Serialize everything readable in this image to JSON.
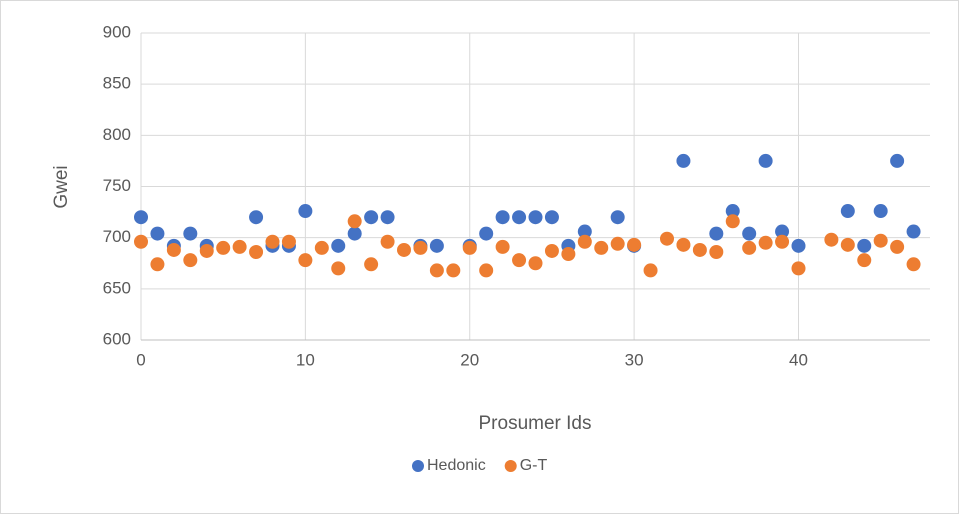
{
  "chart_data": {
    "type": "scatter",
    "xlabel": "Prosumer Ids",
    "ylabel": "Gwei",
    "xlim": [
      0,
      48
    ],
    "xticks": [
      0,
      10,
      20,
      30,
      40
    ],
    "ylim": [
      600,
      900
    ],
    "yticks": [
      600,
      650,
      700,
      750,
      800,
      850,
      900
    ],
    "grid": true,
    "legend": "bottom",
    "series": [
      {
        "name": "Hedonic",
        "color": "#4472c4",
        "x": [
          0,
          1,
          2,
          3,
          4,
          7,
          8,
          9,
          10,
          12,
          13,
          14,
          15,
          17,
          18,
          20,
          21,
          22,
          23,
          24,
          25,
          26,
          27,
          29,
          30,
          33,
          35,
          36,
          37,
          38,
          39,
          40,
          43,
          44,
          45,
          46,
          47
        ],
        "values": [
          720,
          704,
          692,
          704,
          692,
          720,
          692,
          692,
          726,
          692,
          704,
          720,
          720,
          692,
          692,
          692,
          704,
          720,
          720,
          720,
          720,
          692,
          706,
          720,
          692,
          775,
          704,
          726,
          704,
          775,
          706,
          692,
          726,
          692,
          726,
          775,
          706
        ]
      },
      {
        "name": "G-T",
        "color": "#ed7d31",
        "x": [
          0,
          1,
          2,
          3,
          4,
          5,
          6,
          7,
          8,
          9,
          10,
          11,
          12,
          13,
          14,
          15,
          16,
          17,
          18,
          19,
          20,
          21,
          22,
          23,
          24,
          25,
          26,
          27,
          28,
          29,
          30,
          31,
          32,
          33,
          34,
          35,
          36,
          37,
          38,
          39,
          40,
          42,
          43,
          44,
          45,
          46,
          47
        ],
        "values": [
          696,
          674,
          688,
          678,
          687,
          690,
          691,
          686,
          696,
          696,
          678,
          690,
          670,
          716,
          674,
          696,
          688,
          690,
          668,
          668,
          690,
          668,
          691,
          678,
          675,
          687,
          684,
          696,
          690,
          694,
          693,
          668,
          699,
          693,
          688,
          686,
          716,
          690,
          695,
          696,
          670,
          698,
          693,
          678,
          697,
          691,
          674
        ]
      }
    ]
  }
}
